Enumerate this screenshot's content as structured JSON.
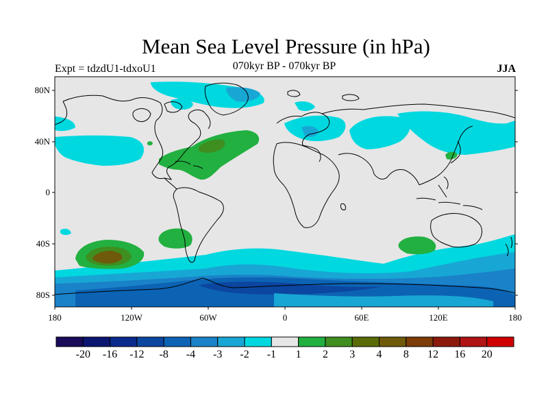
{
  "title": "Mean Sea Level Pressure (in hPa)",
  "subtitle_left": "Expt = tdzdU1-tdxoU1",
  "subtitle_center": "070kyr BP - 070kyr BP",
  "subtitle_right": "JJA",
  "map": {
    "lat_ticks": [
      "80N",
      "40N",
      "0",
      "40S",
      "80S"
    ],
    "lon_ticks": [
      "180",
      "120W",
      "60W",
      "0",
      "60E",
      "120E",
      "180"
    ]
  },
  "colorbar": {
    "colors": [
      "#1a0a5a",
      "#0c1570",
      "#0a2a8c",
      "#0b46a0",
      "#0c63b4",
      "#1a82c8",
      "#18a7d4",
      "#00d8e0",
      "#e6e6e6",
      "#22b040",
      "#3f8e20",
      "#5a6b0a",
      "#6e5a0a",
      "#7d3c08",
      "#8c1a0c",
      "#b01414",
      "#d00000"
    ],
    "labels": [
      "-20",
      "-16",
      "-12",
      "-8",
      "-4",
      "-3",
      "-2",
      "-1",
      "1",
      "2",
      "3",
      "4",
      "8",
      "12",
      "16",
      "20"
    ]
  },
  "palette": {
    "background": "#e6e6e6",
    "neg1": "#00d8e0",
    "neg2": "#18a7d4",
    "neg3": "#1a82c8",
    "neg4": "#0c63b4",
    "neg8": "#0b46a0",
    "pos1": "#22b040",
    "pos2": "#3f8e20",
    "pos3": "#6e5a0a"
  }
}
